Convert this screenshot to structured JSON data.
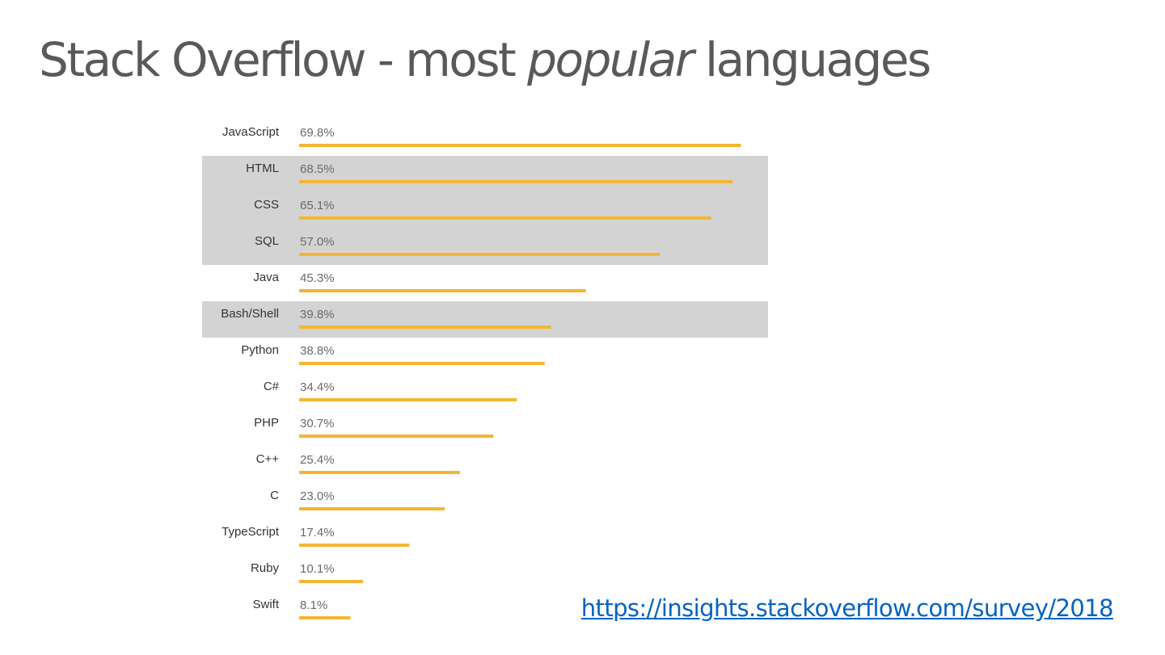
{
  "title": {
    "part1": "Stack Overflow - most ",
    "italic": "popular",
    "part2": " languages"
  },
  "source_link": {
    "text": "https://insights.stackoverflow.com/survey/2018"
  },
  "colors": {
    "bar": "#f4b630",
    "highlight_band": "#d3d3d3",
    "label_text": "#333333",
    "value_text": "#6a6a6a",
    "link": "#0563c1"
  },
  "chart_data": {
    "type": "bar",
    "orientation": "horizontal",
    "categories": [
      "JavaScript",
      "HTML",
      "CSS",
      "SQL",
      "Java",
      "Bash/Shell",
      "Python",
      "C#",
      "PHP",
      "C++",
      "C",
      "TypeScript",
      "Ruby",
      "Swift"
    ],
    "values": [
      69.8,
      68.5,
      65.1,
      57.0,
      45.3,
      39.8,
      38.8,
      34.4,
      30.7,
      25.4,
      23.0,
      17.4,
      10.1,
      8.1
    ],
    "value_labels": [
      "69.8%",
      "68.5%",
      "65.1%",
      "57.0%",
      "45.3%",
      "39.8%",
      "38.8%",
      "34.4%",
      "30.7%",
      "25.4%",
      "23.0%",
      "17.4%",
      "10.1%",
      "8.1%"
    ],
    "highlighted": [
      "HTML",
      "CSS",
      "SQL",
      "Bash/Shell"
    ],
    "unit": "%",
    "xlim": [
      0,
      70
    ],
    "grid": false,
    "legend": "none"
  }
}
